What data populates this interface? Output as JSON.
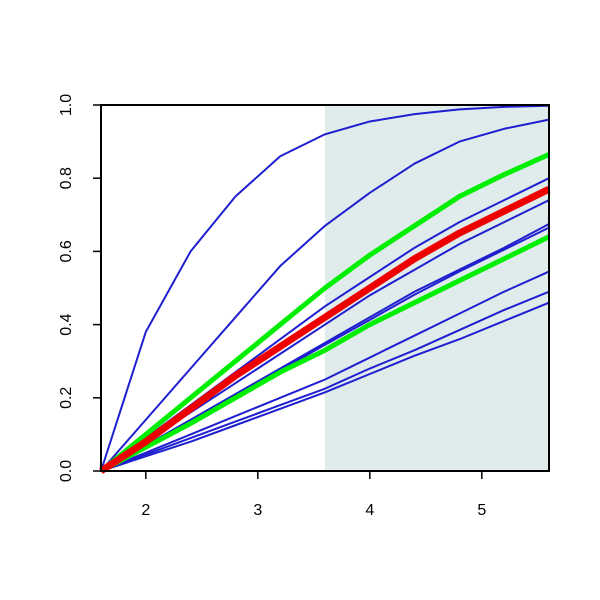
{
  "chart_data": {
    "type": "line",
    "x": [
      1.6,
      2.0,
      2.4,
      2.8,
      3.2,
      3.6,
      4.0,
      4.4,
      4.8,
      5.2,
      5.6
    ],
    "xlim": [
      1.6,
      5.6
    ],
    "xticks": [
      2,
      3,
      4,
      5
    ],
    "ylim": [
      0,
      1
    ],
    "yticks": [
      {
        "value": 0,
        "label": "0.0"
      },
      0.2,
      0.4,
      0.6,
      0.8,
      {
        "value": 1,
        "label": "1.0"
      }
    ],
    "shaded_region": [
      3.6,
      5.6
    ],
    "shade_color": "#e0ecec",
    "series": [
      {
        "color": "#1f1fd0",
        "width": 2,
        "values": [
          0,
          0.38,
          0.6,
          0.75,
          0.86,
          0.92,
          0.955,
          0.975,
          0.988,
          0.995,
          0.998
        ]
      },
      {
        "color": "#1f1fd0",
        "width": 2,
        "values": [
          0,
          0.14,
          0.28,
          0.42,
          0.56,
          0.67,
          0.76,
          0.84,
          0.9,
          0.935,
          0.96
        ]
      },
      {
        "color": "#1f1fd0",
        "width": 2,
        "values": [
          0,
          0.09,
          0.18,
          0.27,
          0.36,
          0.45,
          0.53,
          0.61,
          0.68,
          0.74,
          0.8
        ]
      },
      {
        "color": "#1f1fd0",
        "width": 2,
        "values": [
          0,
          0.08,
          0.16,
          0.24,
          0.32,
          0.4,
          0.48,
          0.55,
          0.62,
          0.68,
          0.74
        ]
      },
      {
        "color": "#1f1fd0",
        "width": 2,
        "values": [
          0,
          0.07,
          0.14,
          0.21,
          0.28,
          0.35,
          0.42,
          0.49,
          0.55,
          0.61,
          0.675
        ]
      },
      {
        "color": "#1f1fd0",
        "width": 2,
        "values": [
          0,
          0.068,
          0.137,
          0.205,
          0.275,
          0.345,
          0.413,
          0.482,
          0.545,
          0.605,
          0.665
        ]
      },
      {
        "color": "#1f1fd0",
        "width": 2,
        "values": [
          0,
          0.05,
          0.1,
          0.15,
          0.2,
          0.25,
          0.31,
          0.37,
          0.43,
          0.49,
          0.545
        ]
      },
      {
        "color": "#1f1fd0",
        "width": 2,
        "values": [
          0,
          0.045,
          0.09,
          0.135,
          0.18,
          0.225,
          0.28,
          0.33,
          0.385,
          0.44,
          0.49
        ]
      },
      {
        "color": "#1f1fd0",
        "width": 2,
        "values": [
          0,
          0.04,
          0.08,
          0.125,
          0.17,
          0.215,
          0.265,
          0.315,
          0.36,
          0.41,
          0.46
        ]
      },
      {
        "color": "#00ee00",
        "width": 5,
        "values": [
          0,
          0.1,
          0.2,
          0.3,
          0.4,
          0.5,
          0.59,
          0.67,
          0.75,
          0.81,
          0.865
        ]
      },
      {
        "color": "#00ee00",
        "width": 5,
        "values": [
          0,
          0.065,
          0.13,
          0.2,
          0.27,
          0.33,
          0.4,
          0.46,
          0.52,
          0.58,
          0.64
        ]
      },
      {
        "color": "#ee0000",
        "width": 7,
        "values": [
          0,
          0.08,
          0.17,
          0.26,
          0.34,
          0.42,
          0.5,
          0.58,
          0.65,
          0.71,
          0.77
        ]
      }
    ]
  }
}
